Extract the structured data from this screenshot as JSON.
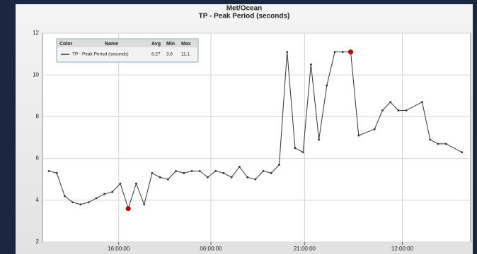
{
  "chart_data": {
    "type": "line",
    "title": "Met/Ocean",
    "subtitle": "TP - Peak Period (seconds)",
    "x": [
      0,
      1,
      2,
      3,
      4,
      5,
      6,
      7,
      8,
      9,
      10,
      11,
      12,
      13,
      14,
      15,
      16,
      17,
      18,
      19,
      20,
      21,
      22,
      23,
      24,
      25,
      26,
      27,
      28,
      29,
      30,
      31,
      32,
      33,
      34,
      35,
      36,
      37,
      38,
      39,
      41,
      42,
      43,
      44,
      45,
      47,
      48,
      49,
      50,
      52
    ],
    "series": [
      {
        "name": "TP - Peak Period (seconds)",
        "color": "#333333",
        "values": [
          5.4,
          5.3,
          4.2,
          3.9,
          3.8,
          3.9,
          4.1,
          4.3,
          4.4,
          4.8,
          3.6,
          4.8,
          3.8,
          5.3,
          5.1,
          5.0,
          5.4,
          5.3,
          5.4,
          5.4,
          5.1,
          5.4,
          5.3,
          5.1,
          5.6,
          5.1,
          5.0,
          5.4,
          5.3,
          5.7,
          11.1,
          6.5,
          6.3,
          10.5,
          6.9,
          9.5,
          11.1,
          11.1,
          11.1,
          7.1,
          7.4,
          8.3,
          8.7,
          8.3,
          8.3,
          8.7,
          6.9,
          6.7,
          6.7,
          6.3
        ]
      }
    ],
    "xlim": [
      -0.8,
      53.1
    ],
    "xticks": [
      {
        "value": 8.8,
        "label": "16:00:00"
      },
      {
        "value": 20.4,
        "label": "06:00:00"
      },
      {
        "value": 32.2,
        "label": "21:00:00"
      },
      {
        "value": 44.5,
        "label": "12:00:00"
      }
    ],
    "ylim": [
      2,
      12
    ],
    "yticks": [
      2,
      4,
      6,
      8,
      10,
      12
    ],
    "grid": true,
    "highlight_extremes": true,
    "highlight_color": "#c00000",
    "legend": {
      "headers": [
        "Color",
        "Name",
        "Avg",
        "Min",
        "Max"
      ],
      "stats": [
        6.27,
        3.6,
        11.1
      ]
    }
  }
}
